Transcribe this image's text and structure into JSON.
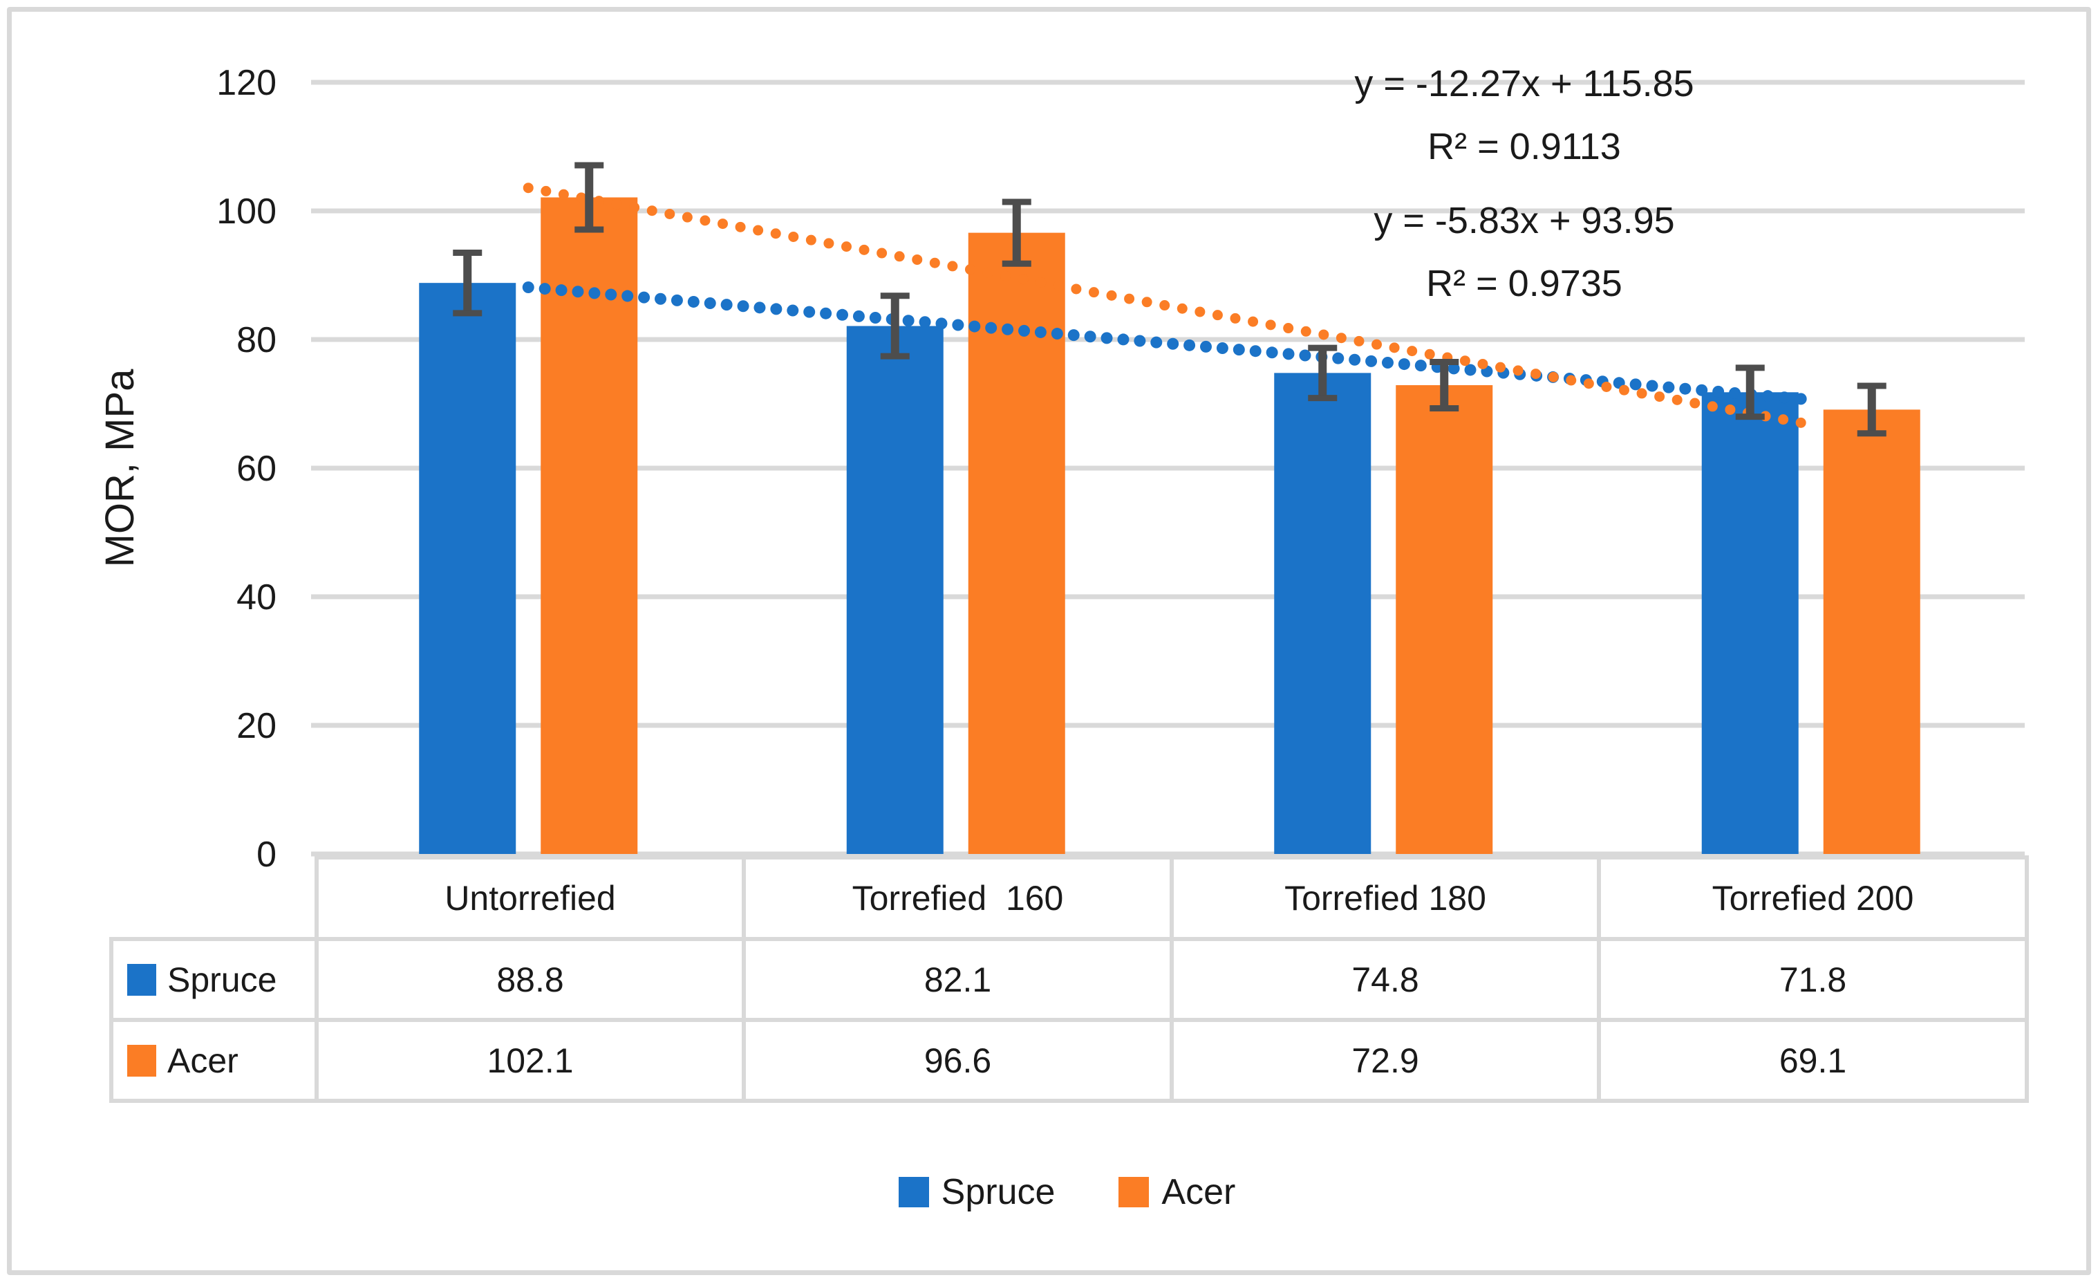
{
  "chart_data": {
    "type": "bar",
    "title": "",
    "xlabel": "",
    "ylabel": "MOR, MPa",
    "categories": [
      "Untorrefied",
      "Torrefied  160",
      "Torrefied 180",
      "Torrefied 200"
    ],
    "series": [
      {
        "name": "Spruce",
        "color": "#1B73C8",
        "values": [
          88.8,
          82.1,
          74.8,
          71.8
        ],
        "errors": [
          4.7,
          4.7,
          3.9,
          3.8
        ],
        "trendline": {
          "slope": -5.83,
          "intercept": 93.95,
          "equation_label": "y = -5.83x + 93.95",
          "r2_label": "R² = 0.9735"
        }
      },
      {
        "name": "Acer",
        "color": "#FB7D25",
        "values": [
          102.1,
          96.6,
          72.9,
          69.1
        ],
        "errors": [
          5.0,
          4.8,
          3.6,
          3.7
        ],
        "trendline": {
          "slope": -12.27,
          "intercept": 115.85,
          "equation_label": "y = -12.27x + 115.85",
          "r2_label": "R² = 0.9113"
        }
      }
    ],
    "y_axis": {
      "min": 0,
      "max": 120,
      "step": 20,
      "tick_labels": [
        "0",
        "20",
        "40",
        "60",
        "80",
        "100",
        "120"
      ]
    },
    "grid": true,
    "error_bars": true,
    "legend_position": "bottom"
  },
  "colors": {
    "gridline": "#D9D9D9",
    "error_bar": "#4D4D4D",
    "table_border": "#D9D9D9",
    "frame_border": "#D9D9D9",
    "text": "#1A1A1A"
  }
}
